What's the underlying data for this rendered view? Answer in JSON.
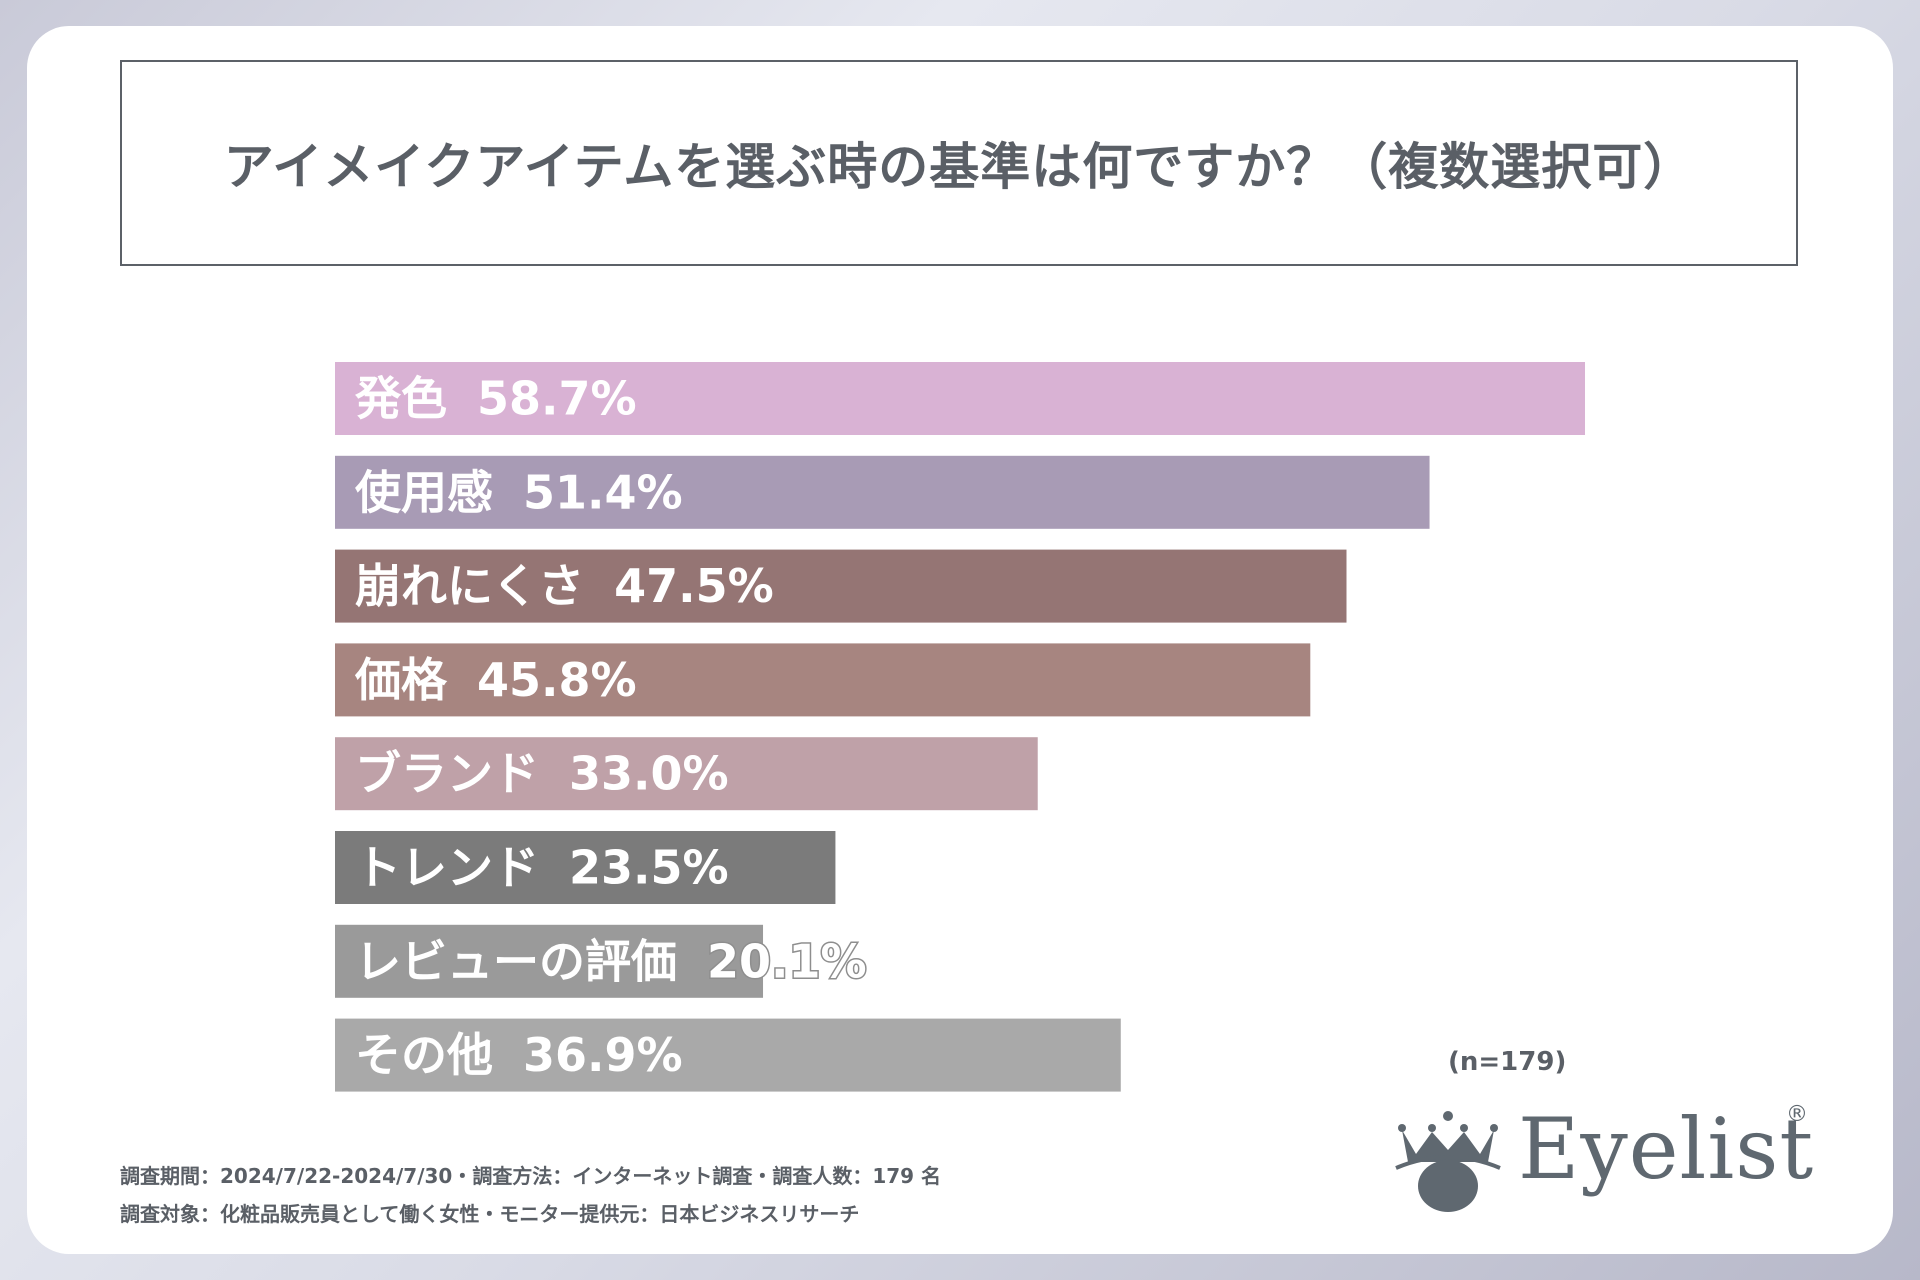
{
  "title": "アイメイクアイテムを選ぶ時の基準は何ですか？（複数選択可）",
  "chart_data": {
    "type": "bar",
    "orientation": "horizontal",
    "title": "アイメイクアイテムを選ぶ時の基準は何ですか？（複数選択可）",
    "categories": [
      "発色",
      "使用感",
      "崩れにくさ",
      "価格",
      "ブランド",
      "トレンド",
      "レビューの評価",
      "その他"
    ],
    "values": [
      58.7,
      51.4,
      47.5,
      45.8,
      33.0,
      23.5,
      20.1,
      36.9
    ],
    "value_labels": [
      "58.7%",
      "51.4%",
      "47.5%",
      "45.8%",
      "33.0%",
      "23.5%",
      "20.1%",
      "36.9%"
    ],
    "colors": [
      "#d9b2d4",
      "#a89bb5",
      "#957574",
      "#a78580",
      "#bfa1a8",
      "#7b7b7b",
      "#9a9a9a",
      "#a9a9a9"
    ],
    "xlim": [
      0,
      58.7
    ],
    "xlabel": "",
    "ylabel": "",
    "grid": false,
    "legend": "none"
  },
  "sample_size": "(n=179)",
  "footnotes": {
    "line1": "調査期間：2024/7/22-2024/7/30・調査方法：インターネット調査・調査人数：179 名",
    "line2": "調査対象：化粧品販売員として働く女性・モニター提供元：日本ビジネスリサーチ"
  },
  "logo": {
    "text": "Eyelist",
    "registered": "®",
    "icon": "crown-eye-icon",
    "color": "#5f6870"
  }
}
